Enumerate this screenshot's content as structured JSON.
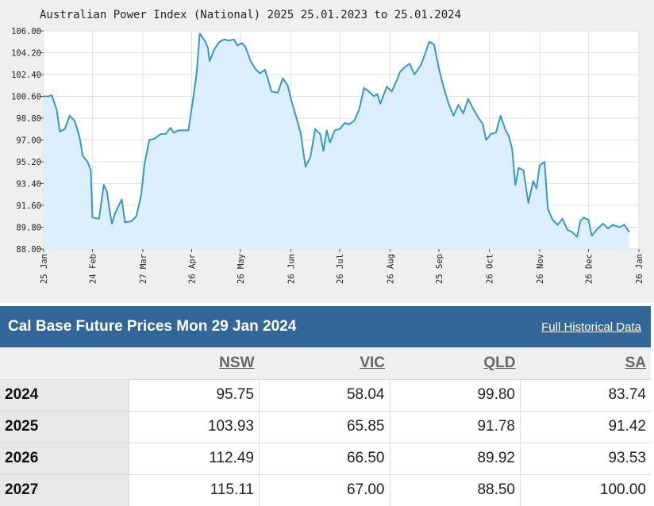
{
  "chart_data": {
    "type": "area",
    "title": "Australian Power Index (National) 2025 25.01.2023 to 25.01.2024",
    "xlabel": "",
    "ylabel": "",
    "ylim": [
      88.0,
      106.0
    ],
    "y_ticks": [
      "88.00",
      "89.80",
      "91.60",
      "93.40",
      "95.20",
      "97.00",
      "98.80",
      "100.60",
      "102.40",
      "104.20",
      "106.00"
    ],
    "x_ticks": [
      {
        "label": "25 Jan",
        "date": "2023-01-25"
      },
      {
        "label": "24 Feb",
        "date": "2023-02-24"
      },
      {
        "label": "27 Mar",
        "date": "2023-03-27"
      },
      {
        "label": "26 Apr",
        "date": "2023-04-26"
      },
      {
        "label": "26 May",
        "date": "2023-05-26"
      },
      {
        "label": "26 Jun",
        "date": "2023-06-26"
      },
      {
        "label": "26 Jul",
        "date": "2023-07-26"
      },
      {
        "label": "26 Aug",
        "date": "2023-08-26"
      },
      {
        "label": "25 Sep",
        "date": "2023-09-25"
      },
      {
        "label": "26 Oct",
        "date": "2023-10-26"
      },
      {
        "label": "26 Nov",
        "date": "2023-11-26"
      },
      {
        "label": "26 Dec",
        "date": "2023-12-26"
      },
      {
        "label": "26 Jan",
        "date": "2024-01-26"
      }
    ],
    "grid": true,
    "line_color": "#3399cc",
    "fill_color": "#ddeeff",
    "series": [
      {
        "values": [
          [
            "2023-01-25",
            100.6
          ],
          [
            "2023-01-28",
            100.6
          ],
          [
            "2023-01-30",
            100.7
          ],
          [
            "2023-02-02",
            99.5
          ],
          [
            "2023-02-04",
            97.7
          ],
          [
            "2023-02-07",
            97.9
          ],
          [
            "2023-02-10",
            99.0
          ],
          [
            "2023-02-13",
            98.6
          ],
          [
            "2023-02-16",
            97.3
          ],
          [
            "2023-02-18",
            95.7
          ],
          [
            "2023-02-21",
            95.2
          ],
          [
            "2023-02-23",
            94.5
          ],
          [
            "2023-02-24",
            90.6
          ],
          [
            "2023-02-28",
            90.5
          ],
          [
            "2023-03-03",
            93.3
          ],
          [
            "2023-03-05",
            92.7
          ],
          [
            "2023-03-07",
            90.8
          ],
          [
            "2023-03-08",
            90.1
          ],
          [
            "2023-03-10",
            91.0
          ],
          [
            "2023-03-14",
            92.1
          ],
          [
            "2023-03-16",
            90.2
          ],
          [
            "2023-03-20",
            90.3
          ],
          [
            "2023-03-23",
            90.7
          ],
          [
            "2023-03-26",
            92.5
          ],
          [
            "2023-03-28",
            95.0
          ],
          [
            "2023-03-31",
            97.0
          ],
          [
            "2023-04-03",
            97.1
          ],
          [
            "2023-04-07",
            97.5
          ],
          [
            "2023-04-10",
            97.5
          ],
          [
            "2023-04-13",
            98.0
          ],
          [
            "2023-04-15",
            97.6
          ],
          [
            "2023-04-18",
            97.8
          ],
          [
            "2023-04-24",
            97.8
          ],
          [
            "2023-04-27",
            100.5
          ],
          [
            "2023-04-29",
            102.4
          ],
          [
            "2023-05-01",
            105.8
          ],
          [
            "2023-05-04",
            105.2
          ],
          [
            "2023-05-06",
            104.6
          ],
          [
            "2023-05-07",
            103.5
          ],
          [
            "2023-05-10",
            104.5
          ],
          [
            "2023-05-13",
            105.1
          ],
          [
            "2023-05-16",
            105.3
          ],
          [
            "2023-05-19",
            105.2
          ],
          [
            "2023-05-22",
            105.3
          ],
          [
            "2023-05-24",
            104.8
          ],
          [
            "2023-05-27",
            105.0
          ],
          [
            "2023-05-29",
            104.7
          ],
          [
            "2023-06-01",
            103.6
          ],
          [
            "2023-06-04",
            102.9
          ],
          [
            "2023-06-07",
            102.5
          ],
          [
            "2023-06-10",
            102.8
          ],
          [
            "2023-06-12",
            102.0
          ],
          [
            "2023-06-14",
            101.0
          ],
          [
            "2023-06-18",
            100.9
          ],
          [
            "2023-06-21",
            102.1
          ],
          [
            "2023-06-24",
            101.5
          ],
          [
            "2023-06-26",
            100.4
          ],
          [
            "2023-06-29",
            99.0
          ],
          [
            "2023-07-02",
            97.6
          ],
          [
            "2023-07-05",
            94.8
          ],
          [
            "2023-07-08",
            95.6
          ],
          [
            "2023-07-11",
            97.9
          ],
          [
            "2023-07-14",
            97.5
          ],
          [
            "2023-07-16",
            96.1
          ],
          [
            "2023-07-18",
            97.8
          ],
          [
            "2023-07-20",
            96.8
          ],
          [
            "2023-07-23",
            97.8
          ],
          [
            "2023-07-26",
            97.9
          ],
          [
            "2023-07-29",
            98.4
          ],
          [
            "2023-08-01",
            98.3
          ],
          [
            "2023-08-04",
            98.6
          ],
          [
            "2023-08-07",
            99.5
          ],
          [
            "2023-08-10",
            101.3
          ],
          [
            "2023-08-13",
            101.0
          ],
          [
            "2023-08-16",
            100.6
          ],
          [
            "2023-08-18",
            100.8
          ],
          [
            "2023-08-20",
            100.0
          ],
          [
            "2023-08-24",
            101.4
          ],
          [
            "2023-08-27",
            101.0
          ],
          [
            "2023-08-30",
            101.9
          ],
          [
            "2023-09-01",
            102.6
          ],
          [
            "2023-09-04",
            103.0
          ],
          [
            "2023-09-07",
            103.3
          ],
          [
            "2023-09-10",
            102.4
          ],
          [
            "2023-09-14",
            103.2
          ],
          [
            "2023-09-17",
            104.3
          ],
          [
            "2023-09-19",
            105.1
          ],
          [
            "2023-09-22",
            104.9
          ],
          [
            "2023-09-25",
            102.9
          ],
          [
            "2023-09-28",
            101.3
          ],
          [
            "2023-10-01",
            100.0
          ],
          [
            "2023-10-04",
            99.0
          ],
          [
            "2023-10-07",
            99.9
          ],
          [
            "2023-10-10",
            99.2
          ],
          [
            "2023-10-13",
            100.4
          ],
          [
            "2023-10-16",
            99.6
          ],
          [
            "2023-10-19",
            98.9
          ],
          [
            "2023-10-22",
            98.3
          ],
          [
            "2023-10-24",
            97.0
          ],
          [
            "2023-10-27",
            97.5
          ],
          [
            "2023-10-30",
            97.6
          ],
          [
            "2023-11-02",
            99.0
          ],
          [
            "2023-11-05",
            97.8
          ],
          [
            "2023-11-07",
            97.3
          ],
          [
            "2023-11-09",
            96.3
          ],
          [
            "2023-11-11",
            93.3
          ],
          [
            "2023-11-13",
            94.7
          ],
          [
            "2023-11-16",
            94.5
          ],
          [
            "2023-11-19",
            91.8
          ],
          [
            "2023-11-22",
            93.6
          ],
          [
            "2023-11-24",
            93.0
          ],
          [
            "2023-11-26",
            94.9
          ],
          [
            "2023-11-29",
            95.2
          ],
          [
            "2023-12-01",
            91.3
          ],
          [
            "2023-12-04",
            90.4
          ],
          [
            "2023-12-07",
            90.0
          ],
          [
            "2023-12-10",
            90.5
          ],
          [
            "2023-12-13",
            89.6
          ],
          [
            "2023-12-16",
            89.4
          ],
          [
            "2023-12-19",
            89.0
          ],
          [
            "2023-12-21",
            90.3
          ],
          [
            "2023-12-23",
            90.6
          ],
          [
            "2023-12-26",
            90.4
          ],
          [
            "2023-12-28",
            89.1
          ],
          [
            "2023-12-31",
            89.6
          ],
          [
            "2024-01-04",
            90.1
          ],
          [
            "2024-01-07",
            89.7
          ],
          [
            "2024-01-10",
            90.0
          ],
          [
            "2024-01-14",
            89.8
          ],
          [
            "2024-01-17",
            90.0
          ],
          [
            "2024-01-20",
            89.4
          ]
        ]
      }
    ]
  },
  "table": {
    "title": "Cal Base Future Prices Mon 29 Jan 2024",
    "link_label": "Full Historical Data",
    "columns": [
      "NSW",
      "VIC",
      "QLD",
      "SA"
    ],
    "rows": [
      {
        "year": "2024",
        "values": [
          "95.75",
          "58.04",
          "99.80",
          "83.74"
        ]
      },
      {
        "year": "2025",
        "values": [
          "103.93",
          "65.85",
          "91.78",
          "91.42"
        ]
      },
      {
        "year": "2026",
        "values": [
          "112.49",
          "66.50",
          "89.92",
          "93.53"
        ]
      },
      {
        "year": "2027",
        "values": [
          "115.11",
          "67.00",
          "88.50",
          "100.00"
        ]
      }
    ]
  }
}
